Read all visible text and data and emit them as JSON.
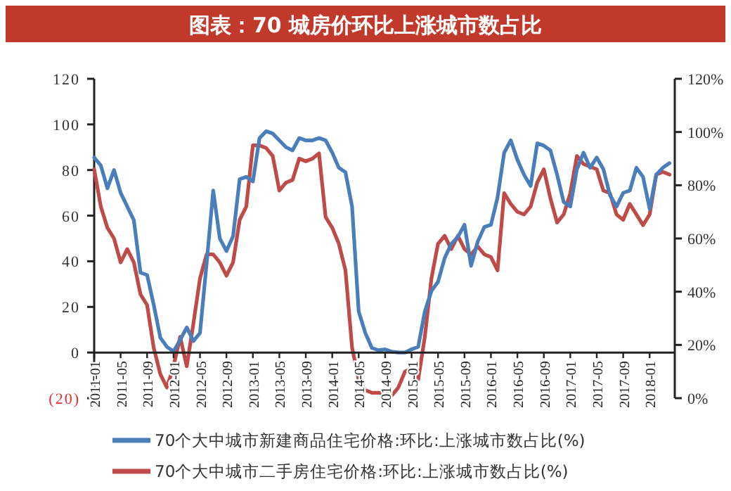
{
  "chart_data": {
    "type": "line",
    "title": "图表：70 城房价环比上涨城市数占比",
    "categories": [
      "2011-01",
      null,
      null,
      null,
      "2011-05",
      null,
      null,
      null,
      "2011-09",
      null,
      null,
      null,
      "2012-01",
      null,
      null,
      null,
      "2012-05",
      null,
      null,
      null,
      "2012-09",
      null,
      null,
      null,
      "2013-01",
      null,
      null,
      null,
      "2013-05",
      null,
      null,
      null,
      "2013-09",
      null,
      null,
      null,
      "2014-01",
      null,
      null,
      null,
      "2014-05",
      null,
      null,
      null,
      "2014-09",
      null,
      null,
      null,
      "2015-01",
      null,
      null,
      null,
      "2015-05",
      null,
      null,
      null,
      "2015-09",
      null,
      null,
      null,
      "2016-01",
      null,
      null,
      null,
      "2016-05",
      null,
      null,
      null,
      "2016-09",
      null,
      null,
      null,
      "2017-01",
      null,
      null,
      null,
      "2017-05",
      null,
      null,
      null,
      "2017-09",
      null,
      null,
      null,
      "2018-01",
      null,
      null,
      null
    ],
    "series": [
      {
        "name": "70个大中城市新建商品住宅价格:环比:上涨城市数占比(%)",
        "color": "#4a7ebb",
        "values": [
          85.5,
          82,
          72,
          80,
          70,
          64,
          58,
          35,
          34,
          21,
          6.5,
          2.5,
          0.5,
          5.5,
          11,
          5,
          8.6,
          39,
          71,
          50,
          44.5,
          51,
          76,
          77,
          75,
          94,
          97,
          96,
          93,
          90,
          88.6,
          94,
          93,
          93,
          94,
          93,
          87.6,
          81,
          79,
          64,
          18,
          8.6,
          2,
          1,
          1.4,
          0.4,
          0,
          0,
          1.4,
          2.5,
          18,
          27,
          31,
          41.4,
          47.6,
          50.7,
          56,
          38,
          48.6,
          55,
          56,
          68,
          87.6,
          93,
          84.5,
          78,
          73,
          91.7,
          90.7,
          88.6,
          78,
          66,
          64,
          80.4,
          87.6,
          81,
          85.5,
          80.4,
          69,
          64,
          70,
          71,
          81,
          77,
          63,
          78,
          81,
          83
        ]
      },
      {
        "name": "70个大中城市二手房住宅价格:环比:上涨城市数占比(%)",
        "color": "#be4b48",
        "axis": "y2",
        "values": [
          86,
          72,
          64,
          60,
          51,
          56,
          51,
          39,
          35,
          19,
          9,
          4,
          12,
          23,
          12,
          28,
          45,
          54,
          54,
          51,
          46,
          51,
          67,
          72,
          95,
          95,
          94,
          91,
          78,
          81,
          82,
          90,
          89,
          90,
          92,
          68,
          64,
          58,
          48,
          19,
          7,
          3,
          2,
          2,
          2,
          1,
          4,
          10,
          11,
          7,
          23,
          45,
          58,
          61,
          56,
          61,
          56,
          54,
          57,
          54,
          53,
          48,
          77,
          73,
          70,
          69,
          72,
          81,
          86,
          75,
          66,
          69,
          77,
          91,
          88,
          87,
          86,
          78,
          77,
          69,
          67,
          73,
          69,
          65,
          69,
          84,
          85,
          84
        ]
      }
    ],
    "ylim": [
      -20,
      120
    ],
    "yticks": [
      {
        "value": -20,
        "label": "(20)"
      },
      0,
      20,
      40,
      60,
      80,
      100,
      120
    ],
    "y2lim": [
      0,
      120
    ],
    "y2ticks": [
      {
        "value": 0,
        "label": "0%"
      },
      {
        "value": 20,
        "label": "20%"
      },
      {
        "value": 40,
        "label": "40%"
      },
      {
        "value": 60,
        "label": "60%"
      },
      {
        "value": 80,
        "label": "80%"
      },
      {
        "value": 100,
        "label": "100%"
      },
      {
        "value": 120,
        "label": "120%"
      }
    ],
    "legend": "bottom"
  }
}
